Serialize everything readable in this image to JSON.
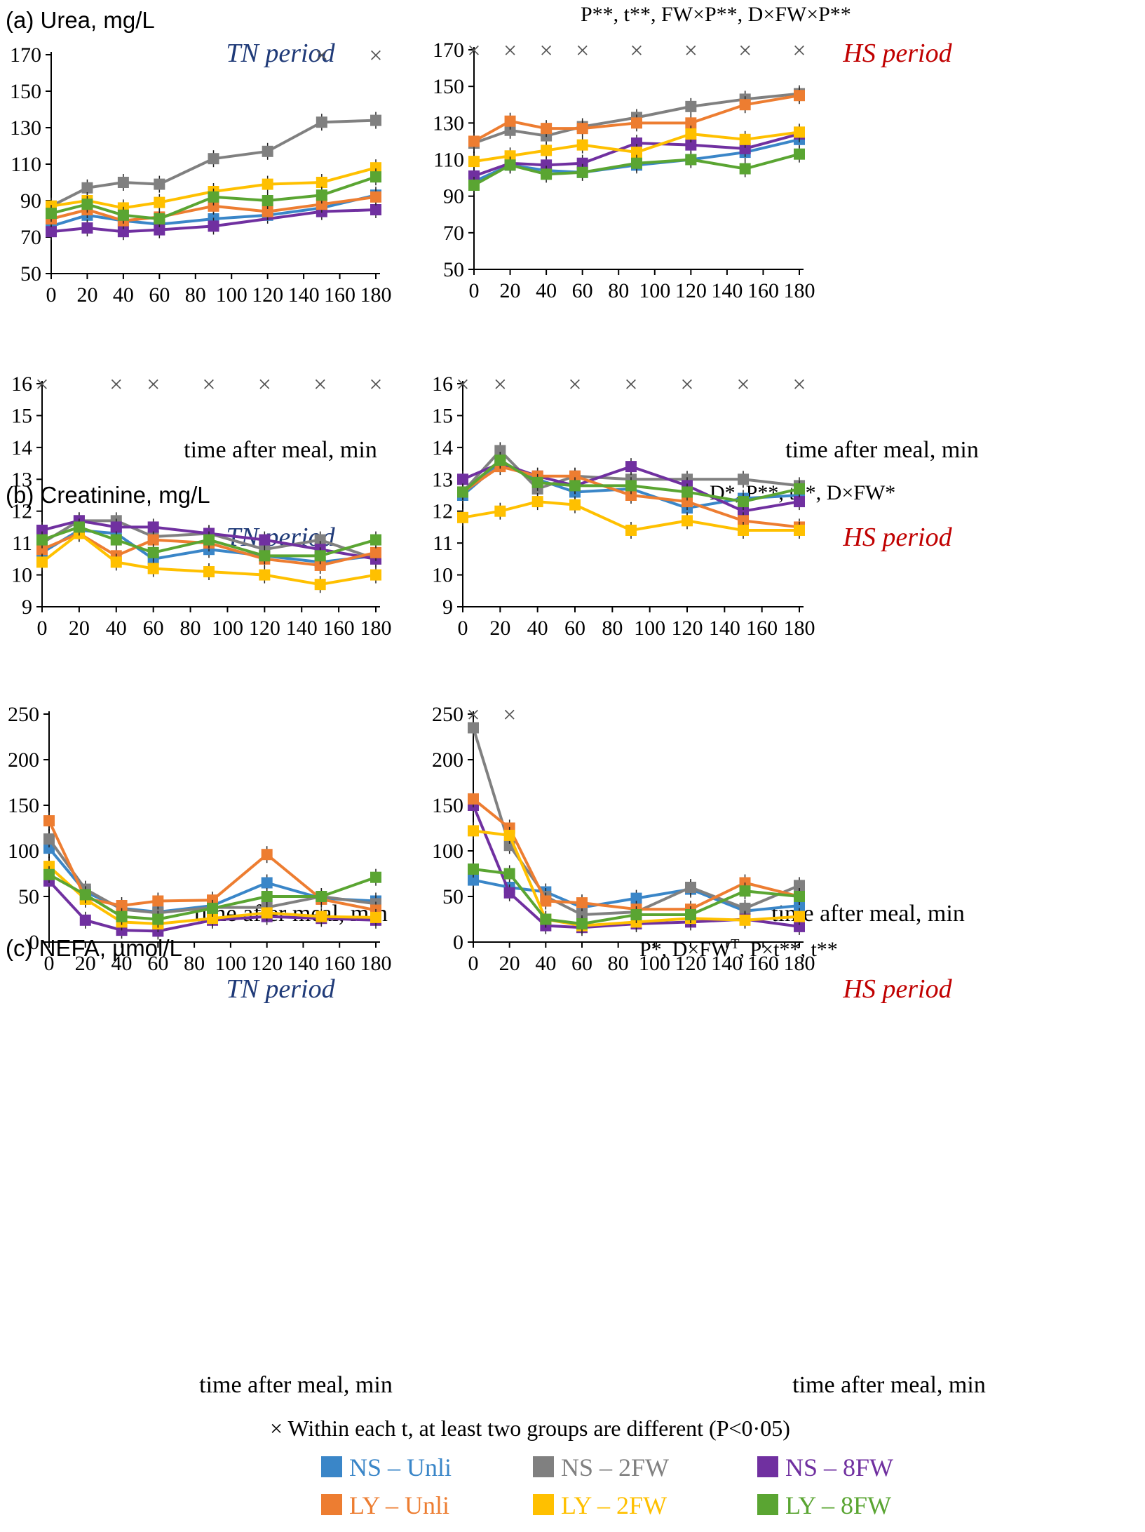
{
  "panels": [
    {
      "id": "a",
      "label": "(a) Urea, mg/L",
      "stats": "P**, t**, FW×P**, D×FW×P**",
      "y_ticks": [
        "50",
        "70",
        "90",
        "110",
        "130",
        "150",
        "170"
      ],
      "x_ticks": [
        "0",
        "20",
        "40",
        "60",
        "80",
        "100",
        "120",
        "140",
        "160",
        "180"
      ],
      "xlabel": "time after meal, min"
    },
    {
      "id": "b",
      "label": "(b) Creatinine, mg/L",
      "stats": "D*, P**, t**, D×FW*",
      "y_ticks": [
        "9",
        "10",
        "11",
        "12",
        "13",
        "14",
        "15",
        "16"
      ],
      "x_ticks": [
        "0",
        "20",
        "40",
        "60",
        "80",
        "100",
        "120",
        "140",
        "160",
        "180"
      ],
      "xlabel": "time after meal, min"
    },
    {
      "id": "c",
      "label": "(c) NEFA, µmol/L",
      "stats_main": "P*, D×FW",
      "stats_sup": "T",
      "stats_rest": ", P×t**, t**",
      "y_ticks": [
        "0",
        "50",
        "100",
        "150",
        "200",
        "250"
      ],
      "x_ticks": [
        "0",
        "20",
        "40",
        "60",
        "80",
        "100",
        "120",
        "140",
        "160",
        "180"
      ],
      "xlabel": "time after meal, min"
    }
  ],
  "periods": {
    "tn": "TN period",
    "hs": "HS period"
  },
  "legend": {
    "note": "× Within each t, at least two groups are different (P<0·05)",
    "items": [
      {
        "label": "NS – Unli",
        "color": "#3a86c8"
      },
      {
        "label": "NS – 2FW",
        "color": "#808080"
      },
      {
        "label": "NS – 8FW",
        "color": "#7030a0"
      },
      {
        "label": "LY – Unli",
        "color": "#ed7d31"
      },
      {
        "label": "LY – 2FW",
        "color": "#ffc000"
      },
      {
        "label": "LY – 8FW",
        "color": "#5aa532"
      }
    ]
  },
  "chart_data": [
    {
      "type": "line",
      "title": "Urea, mg/L — TN period",
      "xlabel": "time after meal, min",
      "ylabel": "Urea, mg/L",
      "ylim": [
        50,
        170
      ],
      "x": [
        0,
        20,
        40,
        60,
        90,
        120,
        150,
        180
      ],
      "sig_times": [
        150,
        180
      ],
      "series": [
        {
          "name": "NS – Unli",
          "values": [
            76,
            82,
            79,
            77,
            80,
            82,
            86,
            93
          ]
        },
        {
          "name": "NS – 2FW",
          "values": [
            87,
            97,
            100,
            99,
            113,
            117,
            133,
            134
          ]
        },
        {
          "name": "NS – 8FW",
          "values": [
            73,
            75,
            73,
            74,
            76,
            null,
            84,
            85
          ]
        },
        {
          "name": "LY – Unli",
          "values": [
            80,
            85,
            79,
            81,
            87,
            84,
            88,
            92
          ]
        },
        {
          "name": "LY – 2FW",
          "values": [
            87,
            90,
            86,
            89,
            95,
            99,
            100,
            108
          ]
        },
        {
          "name": "LY – 8FW",
          "values": [
            83,
            88,
            82,
            80,
            92,
            90,
            93,
            103
          ]
        }
      ]
    },
    {
      "type": "line",
      "title": "Urea, mg/L — HS period",
      "xlabel": "time after meal, min",
      "ylabel": "Urea, mg/L",
      "ylim": [
        50,
        170
      ],
      "x": [
        0,
        20,
        40,
        60,
        90,
        120,
        150,
        180
      ],
      "sig_times": [
        0,
        20,
        40,
        60,
        90,
        120,
        150,
        180
      ],
      "series": [
        {
          "name": "NS – Unli",
          "values": [
            98,
            107,
            104,
            103,
            107,
            110,
            114,
            121
          ]
        },
        {
          "name": "NS – 2FW",
          "values": [
            119,
            126,
            123,
            128,
            133,
            139,
            143,
            146
          ]
        },
        {
          "name": "NS – 8FW",
          "values": [
            101,
            108,
            107,
            108,
            119,
            118,
            116,
            124
          ]
        },
        {
          "name": "LY – Unli",
          "values": [
            120,
            131,
            127,
            127,
            130,
            130,
            140,
            145
          ]
        },
        {
          "name": "LY – 2FW",
          "values": [
            109,
            112,
            115,
            118,
            114,
            124,
            121,
            125
          ]
        },
        {
          "name": "LY – 8FW",
          "values": [
            96,
            107,
            102,
            103,
            108,
            110,
            105,
            113
          ]
        }
      ]
    },
    {
      "type": "line",
      "title": "Creatinine, mg/L — TN period",
      "xlabel": "time after meal, min",
      "ylabel": "Creatinine, mg/L",
      "ylim": [
        9,
        16
      ],
      "x": [
        0,
        20,
        40,
        60,
        90,
        120,
        150,
        180
      ],
      "sig_times": [
        0,
        40,
        60,
        90,
        120,
        150,
        180
      ],
      "series": [
        {
          "name": "NS – Unli",
          "values": [
            10.7,
            11.4,
            11.3,
            10.5,
            10.8,
            10.6,
            10.4,
            10.6
          ]
        },
        {
          "name": "NS – 2FW",
          "values": [
            11.0,
            11.7,
            11.7,
            11.2,
            11.3,
            10.8,
            11.1,
            10.5
          ]
        },
        {
          "name": "NS – 8FW",
          "values": [
            11.4,
            11.7,
            11.5,
            11.5,
            11.3,
            11.1,
            10.8,
            10.5
          ]
        },
        {
          "name": "LY – Unli",
          "values": [
            10.8,
            11.3,
            10.6,
            11.1,
            11.0,
            10.5,
            10.3,
            10.7
          ]
        },
        {
          "name": "LY – 2FW",
          "values": [
            10.4,
            11.3,
            10.4,
            10.2,
            10.1,
            10.0,
            9.7,
            10.0
          ]
        },
        {
          "name": "LY – 8FW",
          "values": [
            11.1,
            11.5,
            11.1,
            10.7,
            11.1,
            10.6,
            10.6,
            11.1
          ]
        }
      ]
    },
    {
      "type": "line",
      "title": "Creatinine, mg/L — HS period",
      "xlabel": "time after meal, min",
      "ylabel": "Creatinine, mg/L",
      "ylim": [
        9,
        16
      ],
      "x": [
        0,
        20,
        40,
        60,
        90,
        120,
        150,
        180
      ],
      "sig_times": [
        0,
        20,
        60,
        90,
        120,
        150,
        180
      ],
      "series": [
        {
          "name": "NS – Unli",
          "values": [
            12.5,
            13.5,
            13.0,
            12.6,
            12.7,
            12.1,
            12.4,
            12.5
          ]
        },
        {
          "name": "NS – 2FW",
          "values": [
            12.6,
            13.9,
            12.7,
            13.1,
            13.0,
            13.0,
            13.0,
            12.8
          ]
        },
        {
          "name": "NS – 8FW",
          "values": [
            13.0,
            13.5,
            13.1,
            12.8,
            13.4,
            12.8,
            12.0,
            12.3
          ]
        },
        {
          "name": "LY – Unli",
          "values": [
            12.6,
            13.4,
            13.1,
            13.1,
            12.5,
            12.3,
            11.7,
            11.5
          ]
        },
        {
          "name": "LY – 2FW",
          "values": [
            11.8,
            12.0,
            12.3,
            12.2,
            11.4,
            11.7,
            11.4,
            11.4
          ]
        },
        {
          "name": "LY – 8FW",
          "values": [
            12.6,
            13.6,
            12.9,
            12.8,
            12.8,
            12.6,
            12.3,
            12.7
          ]
        }
      ]
    },
    {
      "type": "line",
      "title": "NEFA, µmol/L — TN period",
      "xlabel": "time after meal, min",
      "ylabel": "NEFA, µmol/L",
      "ylim": [
        0,
        250
      ],
      "x": [
        0,
        20,
        40,
        60,
        90,
        120,
        150,
        180
      ],
      "sig_times": [],
      "series": [
        {
          "name": "NS – Unli",
          "values": [
            103,
            55,
            37,
            33,
            40,
            65,
            48,
            45
          ]
        },
        {
          "name": "NS – 2FW",
          "values": [
            113,
            58,
            36,
            32,
            38,
            38,
            50,
            42
          ]
        },
        {
          "name": "NS – 8FW",
          "values": [
            67,
            24,
            13,
            12,
            24,
            28,
            26,
            24
          ]
        },
        {
          "name": "LY – Unli",
          "values": [
            133,
            48,
            40,
            45,
            46,
            96,
            47,
            35
          ]
        },
        {
          "name": "LY – 2FW",
          "values": [
            83,
            47,
            22,
            20,
            26,
            32,
            28,
            27
          ]
        },
        {
          "name": "LY – 8FW",
          "values": [
            74,
            52,
            28,
            25,
            37,
            50,
            50,
            71
          ]
        }
      ]
    },
    {
      "type": "line",
      "title": "NEFA, µmol/L — HS period",
      "xlabel": "time after meal, min",
      "ylabel": "NEFA, µmol/L",
      "ylim": [
        0,
        250
      ],
      "x": [
        0,
        20,
        40,
        60,
        90,
        120,
        150,
        180
      ],
      "sig_times": [
        0,
        20
      ],
      "series": [
        {
          "name": "NS – Unli",
          "values": [
            68,
            60,
            55,
            38,
            48,
            58,
            34,
            40
          ]
        },
        {
          "name": "NS – 2FW",
          "values": [
            235,
            106,
            50,
            30,
            33,
            60,
            37,
            62
          ]
        },
        {
          "name": "NS – 8FW",
          "values": [
            150,
            54,
            18,
            16,
            20,
            22,
            25,
            17
          ]
        },
        {
          "name": "LY – Unli",
          "values": [
            157,
            125,
            45,
            43,
            36,
            36,
            65,
            50
          ]
        },
        {
          "name": "LY – 2FW",
          "values": [
            122,
            117,
            25,
            18,
            22,
            26,
            24,
            28
          ]
        },
        {
          "name": "LY – 8FW",
          "values": [
            80,
            75,
            25,
            20,
            30,
            30,
            56,
            50
          ]
        }
      ]
    }
  ]
}
